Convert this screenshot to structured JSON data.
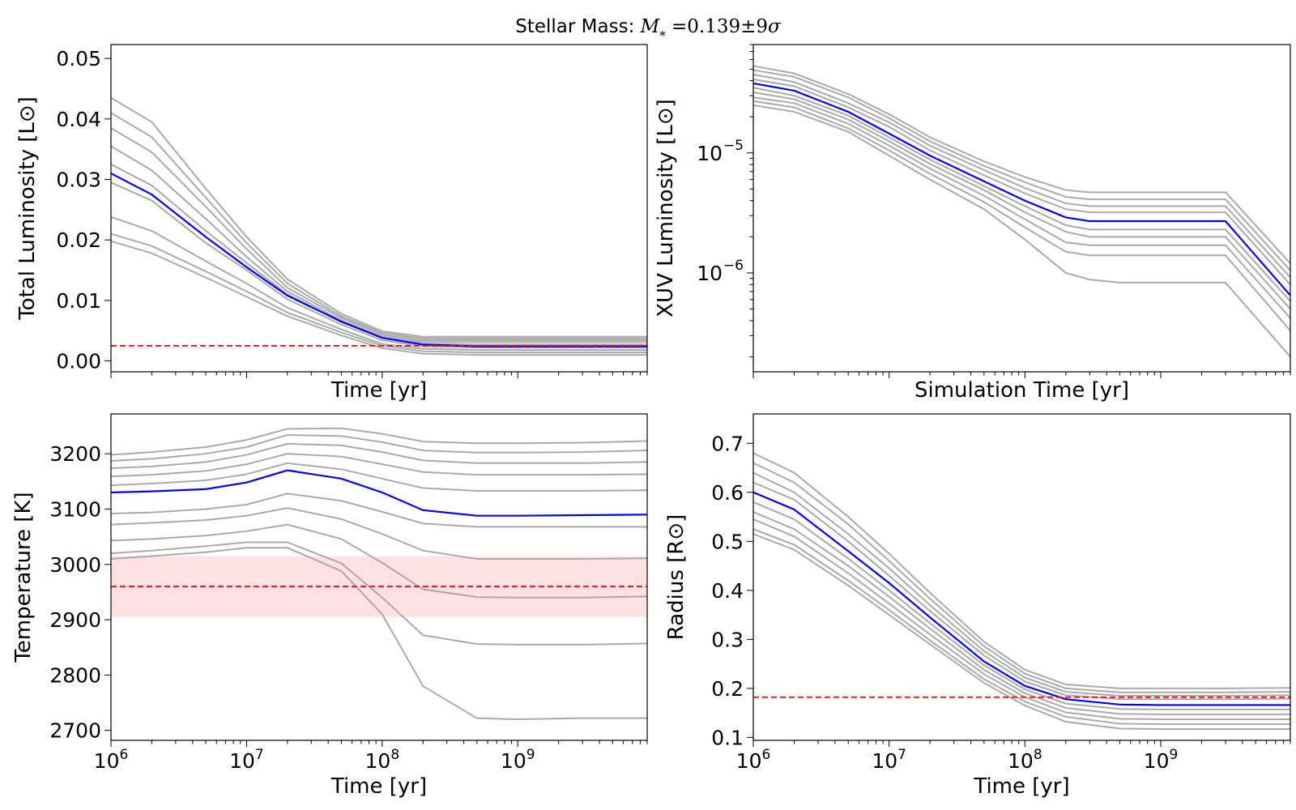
{
  "figure": {
    "suptitle_prefix": "Stellar Mass: ",
    "suptitle_math_M": "M",
    "suptitle_math_sub": "*",
    "suptitle_math_rest": " =0.139±9",
    "suptitle_math_sigma": "σ"
  },
  "chart_data": [
    {
      "id": "lum",
      "type": "line",
      "xscale": "log",
      "yscale": "linear",
      "xlim": [
        1000000,
        9000000000
      ],
      "ylim": [
        -0.0018,
        0.0523
      ],
      "xlabel": "Time [yr]",
      "ylabel": "Total Luminosity [L⊙]",
      "x_tick_labels_shown": false,
      "yticks": [
        0.0,
        0.01,
        0.02,
        0.03,
        0.04,
        0.05
      ],
      "ytick_labels": [
        "0.00",
        "0.01",
        "0.02",
        "0.03",
        "0.04",
        "0.05"
      ],
      "x": [
        1000000,
        2000000,
        5000000,
        10000000,
        20000000,
        50000000,
        100000000,
        200000000,
        500000000,
        1000000000,
        3000000000,
        9000000000
      ],
      "best_fit": [
        0.031,
        0.0275,
        0.0205,
        0.0155,
        0.0108,
        0.0065,
        0.0038,
        0.0027,
        0.0024,
        0.0024,
        0.0024,
        0.0024
      ],
      "models": [
        [
          0.0435,
          0.0395,
          0.0285,
          0.0205,
          0.0135,
          0.0078,
          0.0049,
          0.004,
          0.004,
          0.004,
          0.004,
          0.004
        ],
        [
          0.041,
          0.037,
          0.027,
          0.0195,
          0.0128,
          0.0074,
          0.0046,
          0.0037,
          0.0037,
          0.0037,
          0.0037,
          0.0037
        ],
        [
          0.0385,
          0.0345,
          0.0255,
          0.0185,
          0.0121,
          0.0071,
          0.0043,
          0.0034,
          0.0034,
          0.0034,
          0.0034,
          0.0034
        ],
        [
          0.0355,
          0.0315,
          0.0235,
          0.0172,
          0.0115,
          0.0067,
          0.004,
          0.0031,
          0.0031,
          0.0031,
          0.0031,
          0.0031
        ],
        [
          0.0325,
          0.029,
          0.0215,
          0.0162,
          0.011,
          0.0064,
          0.0038,
          0.0028,
          0.0027,
          0.0027,
          0.0027,
          0.0027
        ],
        [
          0.0295,
          0.0265,
          0.0195,
          0.015,
          0.0102,
          0.006,
          0.0034,
          0.0024,
          0.0022,
          0.0022,
          0.0022,
          0.0022
        ],
        [
          0.0238,
          0.0215,
          0.0165,
          0.0128,
          0.0088,
          0.0052,
          0.0028,
          0.002,
          0.0018,
          0.0018,
          0.0018,
          0.0018
        ],
        [
          0.021,
          0.019,
          0.0148,
          0.0115,
          0.008,
          0.0047,
          0.0025,
          0.0016,
          0.0014,
          0.0014,
          0.0014,
          0.0014
        ],
        [
          0.0198,
          0.0178,
          0.0138,
          0.0106,
          0.0074,
          0.0042,
          0.0021,
          0.0012,
          0.001,
          0.001,
          0.001,
          0.001
        ]
      ],
      "reference": {
        "y": 0.0025,
        "color": "#ff0000",
        "style": "dashed"
      },
      "model_color": "#aaaaaa",
      "best_color": "#0000ff"
    },
    {
      "id": "xuv",
      "type": "line",
      "xscale": "log",
      "yscale": "log",
      "xlim": [
        1000000,
        9000000000
      ],
      "ylim": [
        1.5e-07,
        8e-05
      ],
      "xlabel": "Simulation Time [yr]",
      "ylabel": "XUV Luminosity [L⊙]",
      "x_tick_labels_shown": false,
      "yticks_major": [
        1e-06,
        1e-05
      ],
      "ytick_label_base": [
        "10",
        "10"
      ],
      "ytick_label_exp": [
        "−6",
        "−5"
      ],
      "x": [
        1000000,
        2000000,
        5000000,
        10000000,
        20000000,
        50000000,
        100000000,
        200000000,
        300000000,
        500000000,
        1000000000,
        3000000000,
        9000000000
      ],
      "best_fit": [
        3.8e-05,
        3.3e-05,
        2.2e-05,
        1.45e-05,
        9.5e-06,
        5.8e-06,
        4e-06,
        2.9e-06,
        2.7e-06,
        2.7e-06,
        2.7e-06,
        2.7e-06,
        6.5e-07
      ],
      "models": [
        [
          5.3e-05,
          4.6e-05,
          3.1e-05,
          2.1e-05,
          1.35e-05,
          8.5e-06,
          6.3e-06,
          4.9e-06,
          4.7e-06,
          4.7e-06,
          4.7e-06,
          4.7e-06,
          1.2e-06
        ],
        [
          4.9e-05,
          4.3e-05,
          2.9e-05,
          1.95e-05,
          1.25e-05,
          7.8e-06,
          5.7e-06,
          4.3e-06,
          4.1e-06,
          4.1e-06,
          4.1e-06,
          4.1e-06,
          1.05e-06
        ],
        [
          4.5e-05,
          3.9e-05,
          2.6e-05,
          1.8e-05,
          1.15e-05,
          7.2e-06,
          5.1e-06,
          3.8e-06,
          3.6e-06,
          3.6e-06,
          3.6e-06,
          3.6e-06,
          9.2e-07
        ],
        [
          4.1e-05,
          3.6e-05,
          2.4e-05,
          1.65e-05,
          1.05e-05,
          6.5e-06,
          4.6e-06,
          3.4e-06,
          3.2e-06,
          3.2e-06,
          3.2e-06,
          3.2e-06,
          8e-07
        ],
        [
          3.5e-05,
          3e-05,
          2.05e-05,
          1.35e-05,
          8.8e-06,
          5.3e-06,
          3.6e-06,
          2.5e-06,
          2.3e-06,
          2.3e-06,
          2.3e-06,
          2.3e-06,
          5.8e-07
        ],
        [
          3.2e-05,
          2.8e-05,
          1.9e-05,
          1.25e-05,
          8.1e-06,
          4.9e-06,
          3.2e-06,
          2.2e-06,
          2e-06,
          2e-06,
          2e-06,
          2e-06,
          5e-07
        ],
        [
          2.9e-05,
          2.6e-05,
          1.75e-05,
          1.15e-05,
          7.4e-06,
          4.4e-06,
          2.8e-06,
          1.8e-06,
          1.7e-06,
          1.7e-06,
          1.7e-06,
          1.7e-06,
          4.2e-07
        ],
        [
          2.7e-05,
          2.4e-05,
          1.6e-05,
          1.05e-05,
          6.7e-06,
          3.9e-06,
          2.4e-06,
          1.5e-06,
          1.4e-06,
          1.4e-06,
          1.4e-06,
          1.4e-06,
          3.3e-07
        ],
        [
          2.5e-05,
          2.2e-05,
          1.5e-05,
          9.5e-06,
          6e-06,
          3.4e-06,
          1.9e-06,
          1e-06,
          8.8e-07,
          8.3e-07,
          8.3e-07,
          8.3e-07,
          2e-07
        ]
      ],
      "model_color": "#aaaaaa",
      "best_color": "#0000ff"
    },
    {
      "id": "temp",
      "type": "line",
      "xscale": "log",
      "yscale": "linear",
      "xlim": [
        1000000,
        9000000000
      ],
      "ylim": [
        2682,
        3272
      ],
      "xlabel": "Time [yr]",
      "ylabel": "Temperature [K]",
      "xticks": [
        1000000,
        10000000,
        100000000,
        1000000000
      ],
      "xtick_label_base": [
        "10",
        "10",
        "10",
        "10"
      ],
      "xtick_label_exp": [
        "6",
        "7",
        "8",
        "9"
      ],
      "yticks": [
        2700,
        2800,
        2900,
        3000,
        3100,
        3200
      ],
      "ytick_labels": [
        "2700",
        "2800",
        "2900",
        "3000",
        "3100",
        "3200"
      ],
      "x": [
        1000000,
        2000000,
        5000000,
        10000000,
        20000000,
        50000000,
        100000000,
        200000000,
        500000000,
        1000000000,
        3000000000,
        9000000000
      ],
      "best_fit": [
        3130,
        3132,
        3136,
        3148,
        3170,
        3155,
        3130,
        3098,
        3088,
        3088,
        3089,
        3090
      ],
      "models": [
        [
          3198,
          3203,
          3212,
          3225,
          3245,
          3246,
          3236,
          3222,
          3219,
          3219,
          3220,
          3223
        ],
        [
          3187,
          3191,
          3200,
          3212,
          3234,
          3232,
          3221,
          3206,
          3202,
          3202,
          3203,
          3206
        ],
        [
          3174,
          3177,
          3185,
          3198,
          3218,
          3215,
          3203,
          3188,
          3183,
          3183,
          3183,
          3185
        ],
        [
          3159,
          3162,
          3169,
          3181,
          3200,
          3195,
          3181,
          3167,
          3162,
          3162,
          3162,
          3163
        ],
        [
          3143,
          3146,
          3152,
          3163,
          3183,
          3172,
          3155,
          3138,
          3133,
          3133,
          3133,
          3134
        ],
        [
          3092,
          3094,
          3100,
          3108,
          3128,
          3115,
          3095,
          3074,
          3068,
          3068,
          3068,
          3068
        ],
        [
          3072,
          3075,
          3080,
          3088,
          3102,
          3082,
          3055,
          3025,
          3010,
          3010,
          3010,
          3011
        ],
        [
          3043,
          3046,
          3052,
          3060,
          3072,
          3046,
          3003,
          2955,
          2941,
          2940,
          2940,
          2942
        ],
        [
          3020,
          3025,
          3033,
          3040,
          3040,
          3002,
          2940,
          2872,
          2856,
          2855,
          2855,
          2857
        ],
        [
          3010,
          3015,
          3022,
          3030,
          3030,
          2988,
          2910,
          2780,
          2722,
          2720,
          2722,
          2722
        ]
      ],
      "reference": {
        "y": 2960,
        "band": [
          2905,
          3015
        ],
        "color": "#ff0000",
        "band_color": "#ffe0e3",
        "style": "dashed"
      },
      "model_color": "#aaaaaa",
      "best_color": "#0000ff"
    },
    {
      "id": "rad",
      "type": "line",
      "xscale": "log",
      "yscale": "linear",
      "xlim": [
        1000000,
        9000000000
      ],
      "ylim": [
        0.094,
        0.76
      ],
      "xlabel": "Time [yr]",
      "ylabel": "Radius [R⊙]",
      "xticks": [
        1000000,
        10000000,
        100000000,
        1000000000
      ],
      "xtick_label_base": [
        "10",
        "10",
        "10",
        "10"
      ],
      "xtick_label_exp": [
        "6",
        "7",
        "8",
        "9"
      ],
      "yticks": [
        0.1,
        0.2,
        0.3,
        0.4,
        0.5,
        0.6,
        0.7
      ],
      "ytick_labels": [
        "0.1",
        "0.2",
        "0.3",
        "0.4",
        "0.5",
        "0.6",
        "0.7"
      ],
      "x": [
        1000000,
        2000000,
        5000000,
        10000000,
        20000000,
        50000000,
        100000000,
        200000000,
        500000000,
        1000000000,
        3000000000,
        9000000000
      ],
      "best_fit": [
        0.6,
        0.565,
        0.48,
        0.415,
        0.345,
        0.255,
        0.205,
        0.178,
        0.167,
        0.166,
        0.166,
        0.166
      ],
      "models": [
        [
          0.68,
          0.64,
          0.55,
          0.475,
          0.395,
          0.295,
          0.238,
          0.208,
          0.2,
          0.2,
          0.2,
          0.201
        ],
        [
          0.66,
          0.62,
          0.535,
          0.46,
          0.383,
          0.286,
          0.23,
          0.2,
          0.192,
          0.192,
          0.192,
          0.193
        ],
        [
          0.64,
          0.6,
          0.515,
          0.445,
          0.37,
          0.276,
          0.222,
          0.193,
          0.185,
          0.185,
          0.185,
          0.186
        ],
        [
          0.62,
          0.585,
          0.5,
          0.43,
          0.358,
          0.267,
          0.214,
          0.186,
          0.178,
          0.178,
          0.178,
          0.179
        ],
        [
          0.58,
          0.545,
          0.465,
          0.4,
          0.333,
          0.247,
          0.198,
          0.169,
          0.158,
          0.157,
          0.157,
          0.157
        ],
        [
          0.56,
          0.525,
          0.45,
          0.387,
          0.322,
          0.238,
          0.19,
          0.16,
          0.148,
          0.147,
          0.147,
          0.147
        ],
        [
          0.545,
          0.51,
          0.435,
          0.373,
          0.31,
          0.229,
          0.182,
          0.151,
          0.138,
          0.137,
          0.137,
          0.137
        ],
        [
          0.525,
          0.493,
          0.42,
          0.36,
          0.298,
          0.219,
          0.173,
          0.142,
          0.128,
          0.127,
          0.127,
          0.127
        ],
        [
          0.515,
          0.483,
          0.41,
          0.35,
          0.29,
          0.211,
          0.165,
          0.132,
          0.118,
          0.117,
          0.117,
          0.117
        ]
      ],
      "reference": {
        "y": 0.182,
        "color": "#ff0000",
        "style": "dashed"
      },
      "model_color": "#aaaaaa",
      "best_color": "#0000ff"
    }
  ]
}
